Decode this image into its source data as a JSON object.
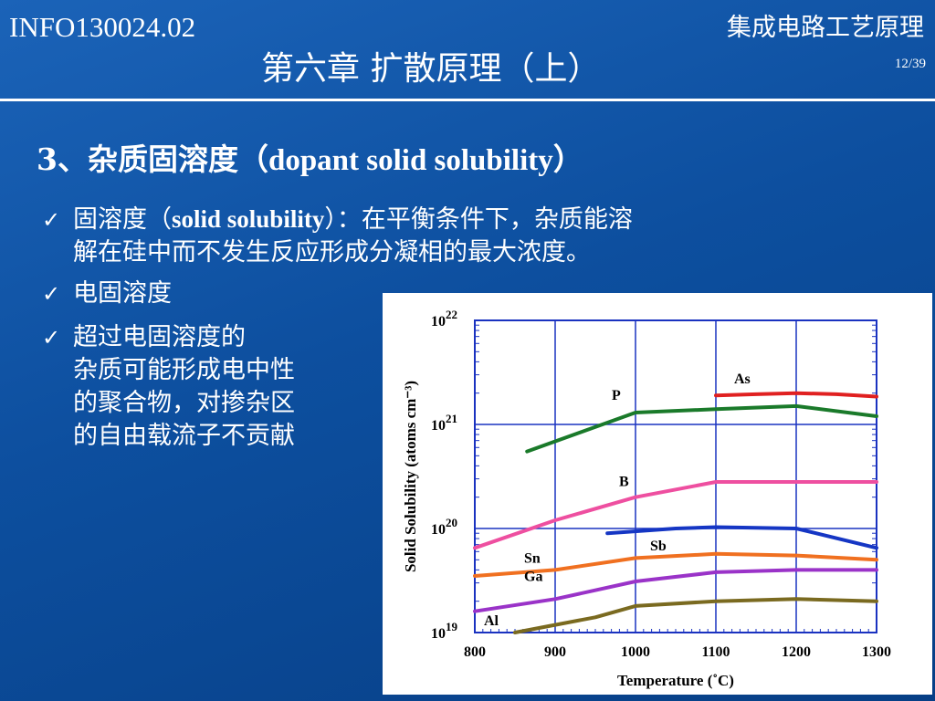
{
  "header": {
    "course_code": "INFO130024.02",
    "course_name": "集成电路工艺原理",
    "chapter_title": "第六章  扩散原理（上）",
    "page": "12/39"
  },
  "section": {
    "title_prefix": "3、杂质固溶度（",
    "title_latin": "dopant solid solubility",
    "title_suffix": "）"
  },
  "bullets": [
    {
      "lines": [
        "固溶度（",
        "solid solubility",
        "）：在平衡条件下，杂质能溶",
        "解在硅中而不发生反应形成分凝相的最大浓度。"
      ]
    },
    {
      "lines": [
        "电固溶度"
      ]
    },
    {
      "lines": [
        "超过电固溶度的",
        "杂质可能形成电中性",
        "的聚合物，对掺杂区",
        "的自由载流子不贡献"
      ]
    }
  ],
  "chart_data": {
    "type": "line",
    "title": "",
    "xlabel": "Temperature (˚C)",
    "ylabel": "Solid Solubility (atoms cm⁻³)",
    "xlim": [
      800,
      1300
    ],
    "ylim_log10": [
      19,
      22
    ],
    "y_scale": "log",
    "x_ticks": [
      "800",
      "900",
      "1000",
      "1100",
      "1200",
      "1300"
    ],
    "y_ticks": [
      {
        "base": "10",
        "exp": "22"
      },
      {
        "base": "10",
        "exp": "21"
      },
      {
        "base": "10",
        "exp": "20"
      },
      {
        "base": "10",
        "exp": "19"
      }
    ],
    "grid": true,
    "series": [
      {
        "name": "As",
        "color": "#e02020",
        "x": [
          1100,
          1150,
          1200,
          1250,
          1300
        ],
        "y": [
          1.9e+21,
          1.95e+21,
          2e+21,
          1.95e+21,
          1.85e+21
        ]
      },
      {
        "name": "P",
        "color": "#1a7a2a",
        "x": [
          865,
          1000,
          1100,
          1200,
          1300
        ],
        "y": [
          5.5e+20,
          1.3e+21,
          1.4e+21,
          1.5e+21,
          1.2e+21
        ]
      },
      {
        "name": "B",
        "color": "#ee4fa0",
        "x": [
          800,
          900,
          1000,
          1100,
          1200,
          1300
        ],
        "y": [
          6.5e+19,
          1.2e+20,
          2e+20,
          2.8e+20,
          2.8e+20,
          2.8e+20
        ]
      },
      {
        "name": "Sb",
        "color": "#1536c4",
        "x": [
          965,
          1050,
          1100,
          1200,
          1300
        ],
        "y": [
          9e+19,
          1e+20,
          1.03e+20,
          1e+20,
          6.5e+19
        ]
      },
      {
        "name": "Sn",
        "color": "#f07020",
        "x": [
          800,
          900,
          1000,
          1100,
          1200,
          1300
        ],
        "y": [
          3.5e+19,
          4e+19,
          5.2e+19,
          5.7e+19,
          5.5e+19,
          5e+19
        ]
      },
      {
        "name": "Ga",
        "color": "#9a33c8",
        "x": [
          800,
          900,
          1000,
          1100,
          1200,
          1300
        ],
        "y": [
          1.6e+19,
          2.1e+19,
          3.1e+19,
          3.8e+19,
          4e+19,
          4e+19
        ]
      },
      {
        "name": "Al",
        "color": "#7a6a20",
        "x": [
          850,
          950,
          1000,
          1100,
          1200,
          1300
        ],
        "y": [
          1e+19,
          1.4e+19,
          1.8e+19,
          2e+19,
          2.1e+19,
          2e+19
        ]
      }
    ]
  }
}
